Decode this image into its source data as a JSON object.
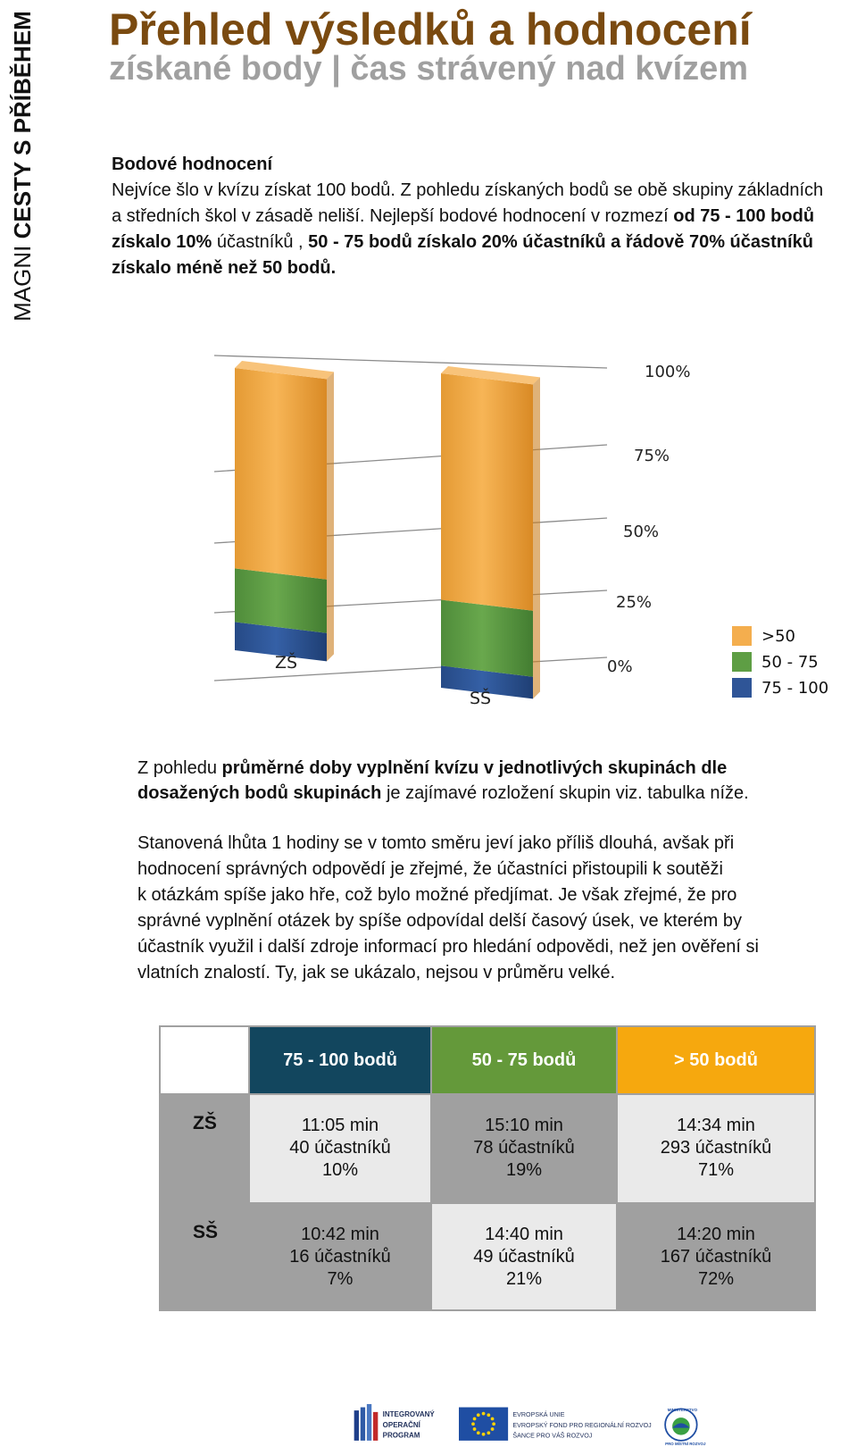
{
  "sidebar": {
    "prefix": "MAGNI ",
    "bold": "CESTY S PŘÍBĚHEM"
  },
  "header": {
    "title": "Přehled výsledků a hodnocení",
    "subtitle": "získané body | čas strávený nad kvízem"
  },
  "intro": {
    "heading": "Bodové hodnocení",
    "t1": "Nejvíce šlo v kvízu získat 100 bodů. Z pohledu získaných bodů se obě skupiny základních a středních škol v zásadě neliší. Nejlepší bodové hodnocení v rozmezí ",
    "b1": "od 75 - 100  bodů získalo 10%",
    "t2": " účastníků , ",
    "b2": "50 - 75 bodů získalo 20% účastníků a řádově 70% účastníků získalo méně než 50 bodů."
  },
  "chart_data": {
    "type": "bar",
    "stacked": true,
    "categories": [
      "ZŠ",
      "SŠ"
    ],
    "y_tick_labels": [
      "0%",
      "25%",
      "50%",
      "75%",
      "100%"
    ],
    "ylim": [
      0,
      100
    ],
    "legend_position": "right",
    "series": [
      {
        "name": "75 - 100",
        "color": "#2f5597",
        "values": [
          10,
          7
        ]
      },
      {
        "name": "50 - 75",
        "color": "#5e9e44",
        "values": [
          19,
          21
        ]
      },
      {
        "name": ">50",
        "color": "#f4ae4e",
        "values": [
          71,
          72
        ]
      }
    ],
    "legend_order": [
      ">50",
      "50 - 75",
      "75 - 100"
    ]
  },
  "para2": {
    "t1": "Z pohledu ",
    "b1": "průměrné doby vyplnění kvízu v jednotlivých skupinách dle",
    "b2": "dosažených bodů skupinách",
    "t2": " je zajímavé  rozložení  skupin viz. tabulka níže."
  },
  "para3": {
    "lines": [
      "Stanovená lhůta 1 hodiny se v tomto směru jeví jako příliš dlouhá, avšak při",
      "hodnocení správných odpovědí  je zřejmé, že účastníci přistoupili k soutěži",
      "k otázkám spíše jako hře, což bylo možné předjímat. Je však zřejmé, že pro",
      "správné vyplnění otázek by spíše odpovídal delší časový úsek, ve kterém by",
      "účastník využil i další zdroje informací pro hledání odpovědi, než jen ověření si",
      "vlatních znalostí. Ty, jak se ukázalo, nejsou v průměru velké."
    ]
  },
  "table": {
    "headers": [
      "75 - 100 bodů",
      "50 - 75 bodů",
      "> 50 bodů"
    ],
    "header_colors": [
      "#12465e",
      "#64993a",
      "#f6a80e"
    ],
    "rows": [
      {
        "label": "ZŠ",
        "cells": [
          [
            "11:05 min",
            "40 účastníků",
            "10%"
          ],
          [
            "15:10 min",
            "78 účastníků",
            "19%"
          ],
          [
            "14:34 min",
            "293 účastníků",
            "71%"
          ]
        ]
      },
      {
        "label": "SŠ",
        "cells": [
          [
            "10:42 min",
            "16 účastníků",
            "7%"
          ],
          [
            "14:40 min",
            "49 účastníků",
            "21%"
          ],
          [
            "14:20 min",
            "167 účastníků",
            "72%"
          ]
        ]
      }
    ]
  },
  "footer": {
    "op_logo": [
      "INTEGROVANÝ",
      "OPERAČNÍ",
      "PROGRAM"
    ],
    "eu_logo": [
      "EVROPSKÁ UNIE",
      "EVROPSKÝ FOND PRO REGIONÁLNÍ ROZVOJ",
      "ŠANCE PRO VÁŠ ROZVOJ"
    ],
    "ministry_logo": [
      "MINISTERSTVO",
      "PRO MÍSTNÍ ROZVOJ"
    ]
  }
}
